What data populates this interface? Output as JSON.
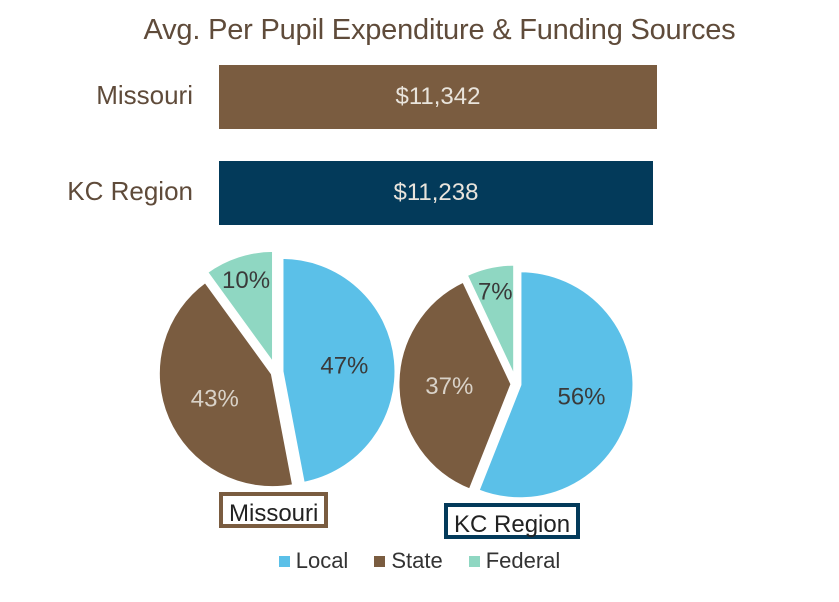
{
  "chart_data": [
    {
      "type": "bar",
      "title": "Avg. Per Pupil Expenditure & Funding Sources",
      "categories": [
        "Missouri",
        "KC Region"
      ],
      "values": [
        11342,
        11238
      ],
      "value_labels": [
        "$11,342",
        "$11,238"
      ],
      "colors": [
        "#7a5c40",
        "#033a5a"
      ],
      "orientation": "horizontal"
    },
    {
      "type": "pie",
      "name": "Missouri",
      "labels": [
        "Local",
        "State",
        "Federal"
      ],
      "values": [
        47,
        43,
        10
      ],
      "value_labels": [
        "47%",
        "43%",
        "10%"
      ]
    },
    {
      "type": "pie",
      "name": "KC Region",
      "labels": [
        "Local",
        "State",
        "Federal"
      ],
      "values": [
        56,
        37,
        7
      ],
      "value_labels": [
        "56%",
        "37%",
        "7%"
      ]
    }
  ],
  "legend": [
    {
      "label": "Local",
      "color": "#5bc0e8"
    },
    {
      "label": "State",
      "color": "#7a5c40"
    },
    {
      "label": "Federal",
      "color": "#8fd7c2"
    }
  ],
  "colors": {
    "title": "#5f4b3a",
    "missouri": "#7a5c40",
    "kc_region": "#033a5a",
    "local": "#5bc0e8",
    "state": "#7a5c40",
    "federal": "#8fd7c2",
    "label_light": "#d9d2c8",
    "label_dark": "#3a3a3a"
  }
}
